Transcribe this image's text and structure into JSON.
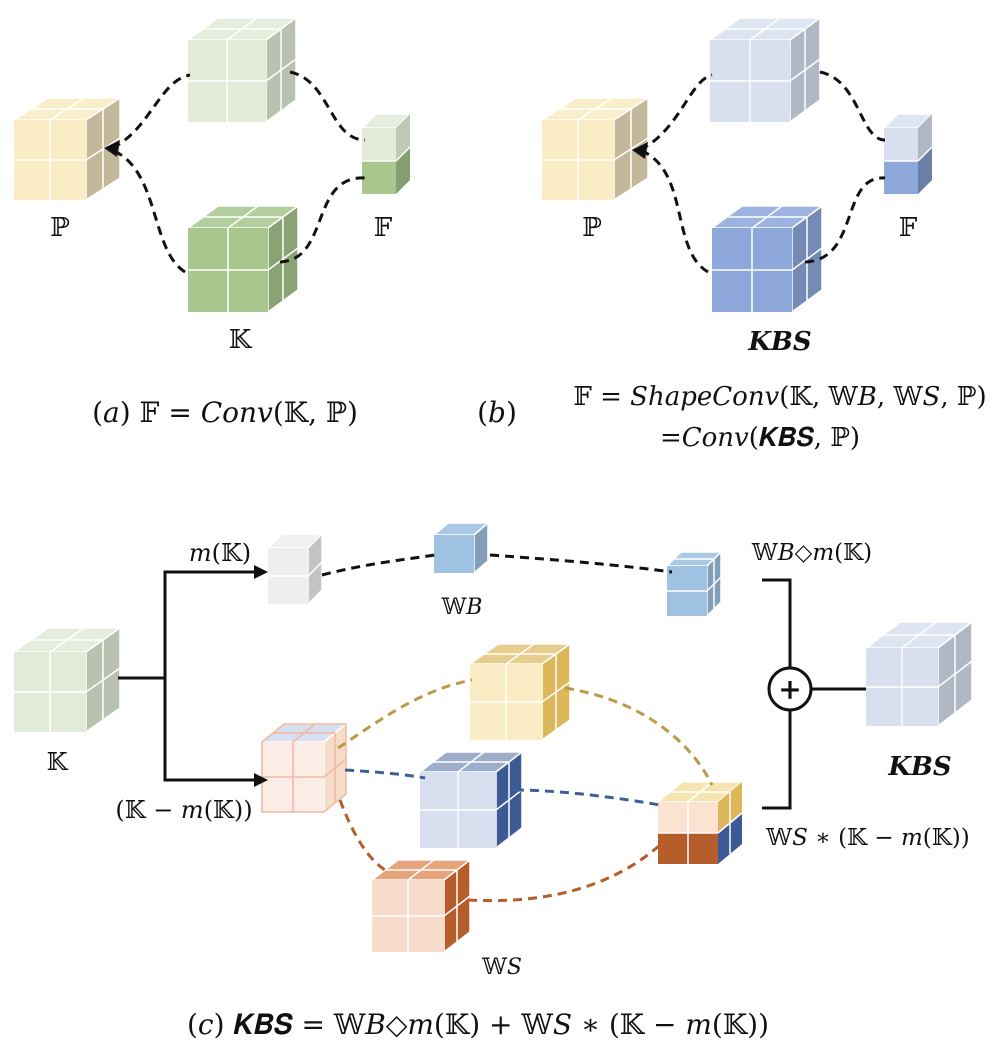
{
  "colors": {
    "yellow": "#faecc4",
    "pale_green": "#e1ebd7",
    "green": "#a7c78e",
    "pale_blue": "#d8e0f0",
    "blue": "#8fa8dc",
    "sky_blue": "#9fc1e2",
    "gray": "#eeeeee",
    "gold": "#dcb85a",
    "navy": "#3d5a94",
    "orange": "#e7a47a",
    "rust": "#b55d2b",
    "gold_line": "#bb9a4a",
    "navy_line": "#3e5f95",
    "rust_line": "#b55d2b"
  },
  "panel_a": {
    "label_p": "ℙ",
    "label_f": "𝔽",
    "label_k": "𝕂",
    "caption": "(𝑎) 𝔽 = 𝐶𝑜𝑛𝑣(𝕂, ℙ)"
  },
  "panel_b": {
    "label_p": "ℙ",
    "label_f": "𝔽",
    "label_kbs": "𝑲𝑩𝑺",
    "caption_line1": "(𝑏)",
    "caption_line2": "𝔽 = 𝑆ℎ𝑎𝑝𝑒𝐶𝑜𝑛𝑣(𝕂, 𝕎𝐵, 𝕎𝑆, ℙ)",
    "caption_line3": "=𝐶𝑜𝑛𝑣(𝑲𝑩𝑺, ℙ)"
  },
  "panel_c": {
    "label_mk": "𝑚(𝕂)",
    "label_wb": "𝕎𝐵",
    "label_wb_mk": "𝕎𝐵◇𝑚(𝕂)",
    "label_k": "𝕂",
    "label_k_minus_mk": "(𝕂 − 𝑚(𝕂))",
    "label_ws": "𝕎𝑆",
    "label_ws_term": "𝕎𝑆 ∗ (𝕂 − 𝑚(𝕂))",
    "label_kbs": "𝑲𝑩𝑺",
    "plus_symbol": "+",
    "caption": "(𝑐) 𝑲𝑩𝑺 = 𝕎𝐵◇𝑚(𝕂) + 𝕎𝑆 ∗ (𝕂 − 𝑚(𝕂))"
  }
}
